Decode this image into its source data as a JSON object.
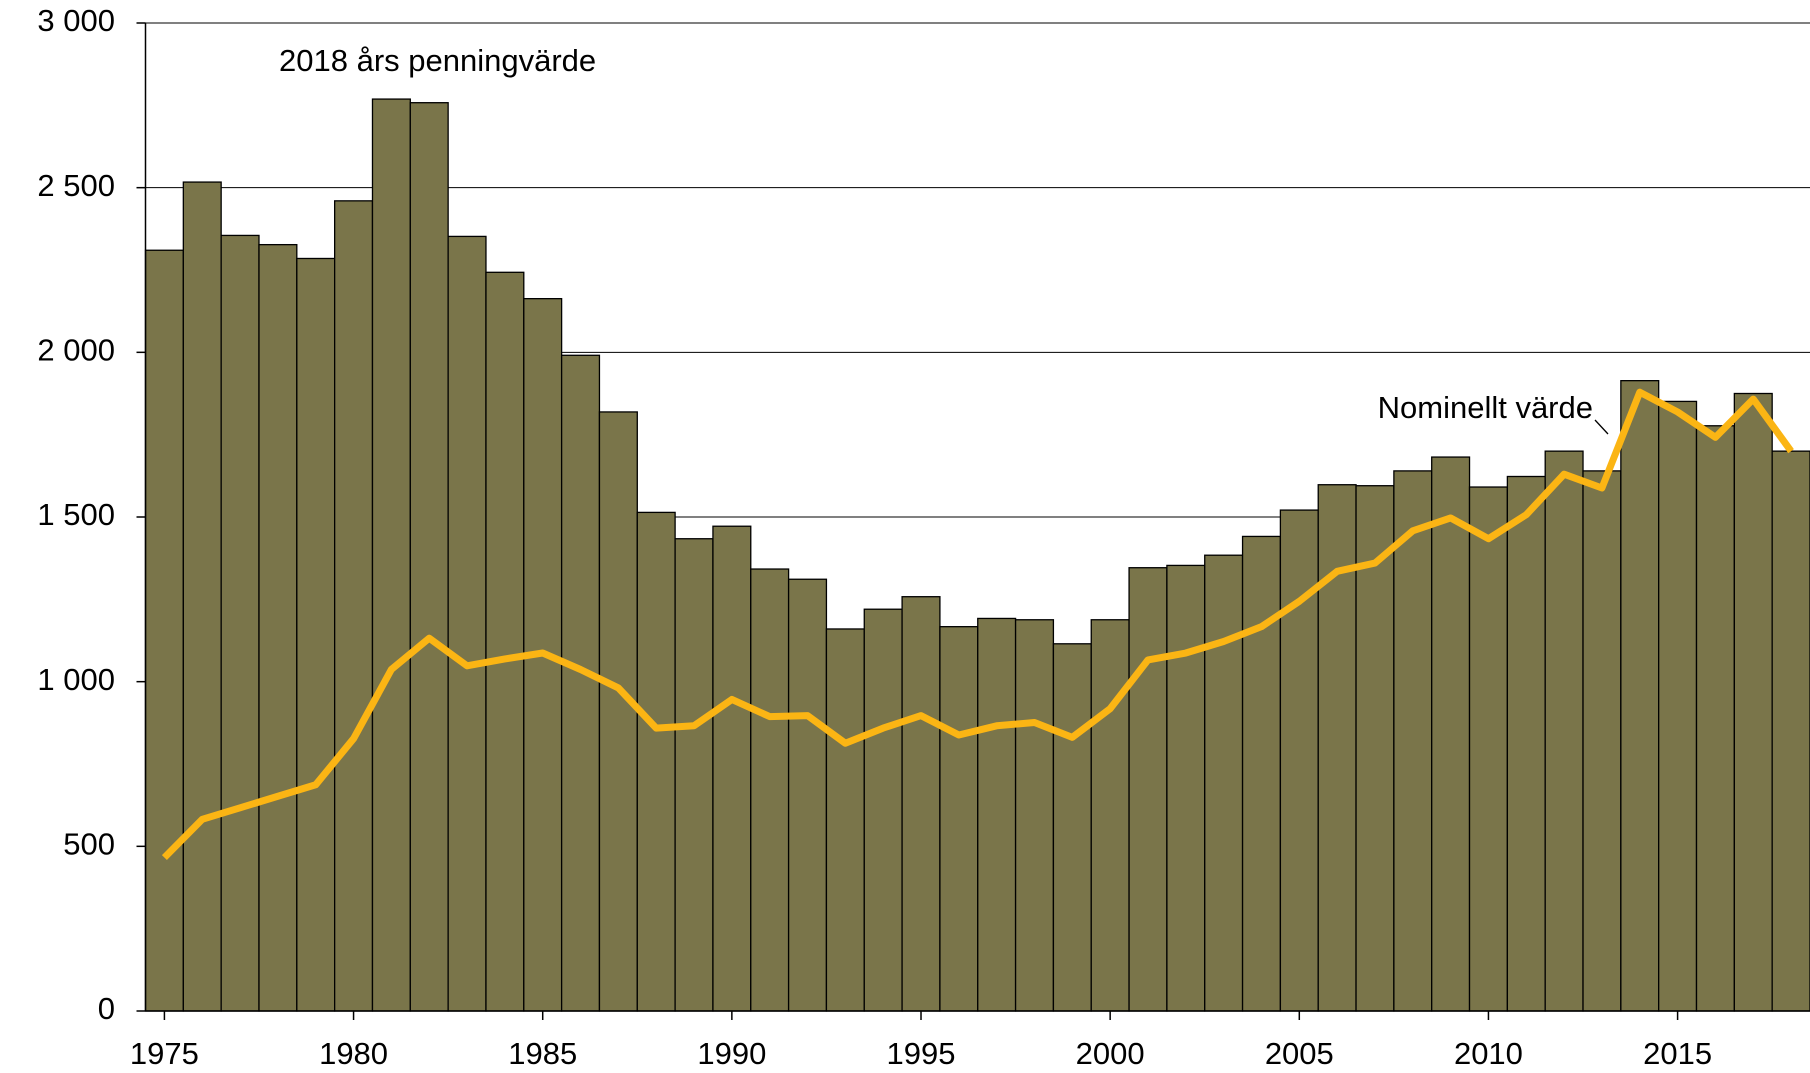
{
  "chart_data": {
    "type": "bar",
    "x": [
      1975,
      1976,
      1977,
      1978,
      1979,
      1980,
      1981,
      1982,
      1983,
      1984,
      1985,
      1986,
      1987,
      1988,
      1989,
      1990,
      1991,
      1992,
      1993,
      1994,
      1995,
      1996,
      1997,
      1998,
      1999,
      2000,
      2001,
      2002,
      2003,
      2004,
      2005,
      2006,
      2007,
      2008,
      2009,
      2010,
      2011,
      2012,
      2013,
      2014,
      2015,
      2016,
      2017,
      2018
    ],
    "series": [
      {
        "name": "2018 års penningvärde",
        "type": "bar",
        "color": "#7a754a",
        "values": [
          2310,
          2517,
          2355,
          2327,
          2285,
          2460,
          2769,
          2758,
          2352,
          2243,
          2163,
          1991,
          1819,
          1514,
          1434,
          1472,
          1342,
          1311,
          1160,
          1220,
          1258,
          1167,
          1192,
          1188,
          1115,
          1188,
          1346,
          1353,
          1384,
          1441,
          1521,
          1598,
          1595,
          1640,
          1682,
          1591,
          1623,
          1700,
          1640,
          1914,
          1851,
          1777,
          1875,
          1700
        ]
      },
      {
        "name": "Nominellt värde",
        "type": "line",
        "color": "#fbb514",
        "values": [
          466,
          582,
          617,
          652,
          687,
          827,
          1037,
          1132,
          1048,
          1069,
          1087,
          1037,
          981,
          859,
          866,
          946,
          894,
          897,
          813,
          859,
          897,
          838,
          866,
          876,
          831,
          918,
          1066,
          1087,
          1122,
          1167,
          1244,
          1335,
          1360,
          1458,
          1497,
          1434,
          1507,
          1630,
          1588,
          1879,
          1819,
          1742,
          1858,
          1700
        ]
      }
    ],
    "xlim": [
      1974.5,
      2018.5
    ],
    "xticks": [
      1975,
      1980,
      1985,
      1990,
      1995,
      2000,
      2005,
      2010,
      2015
    ],
    "ylim": [
      0,
      3000
    ],
    "yticks": [
      0,
      500,
      {
        "value": 1000,
        "label": "1 000"
      },
      {
        "value": 1500,
        "label": "1 500"
      },
      {
        "value": 2000,
        "label": "2 000"
      },
      {
        "value": 2500,
        "label": "2 500"
      },
      {
        "value": 3000,
        "label": "3 000"
      }
    ],
    "grid": true
  }
}
